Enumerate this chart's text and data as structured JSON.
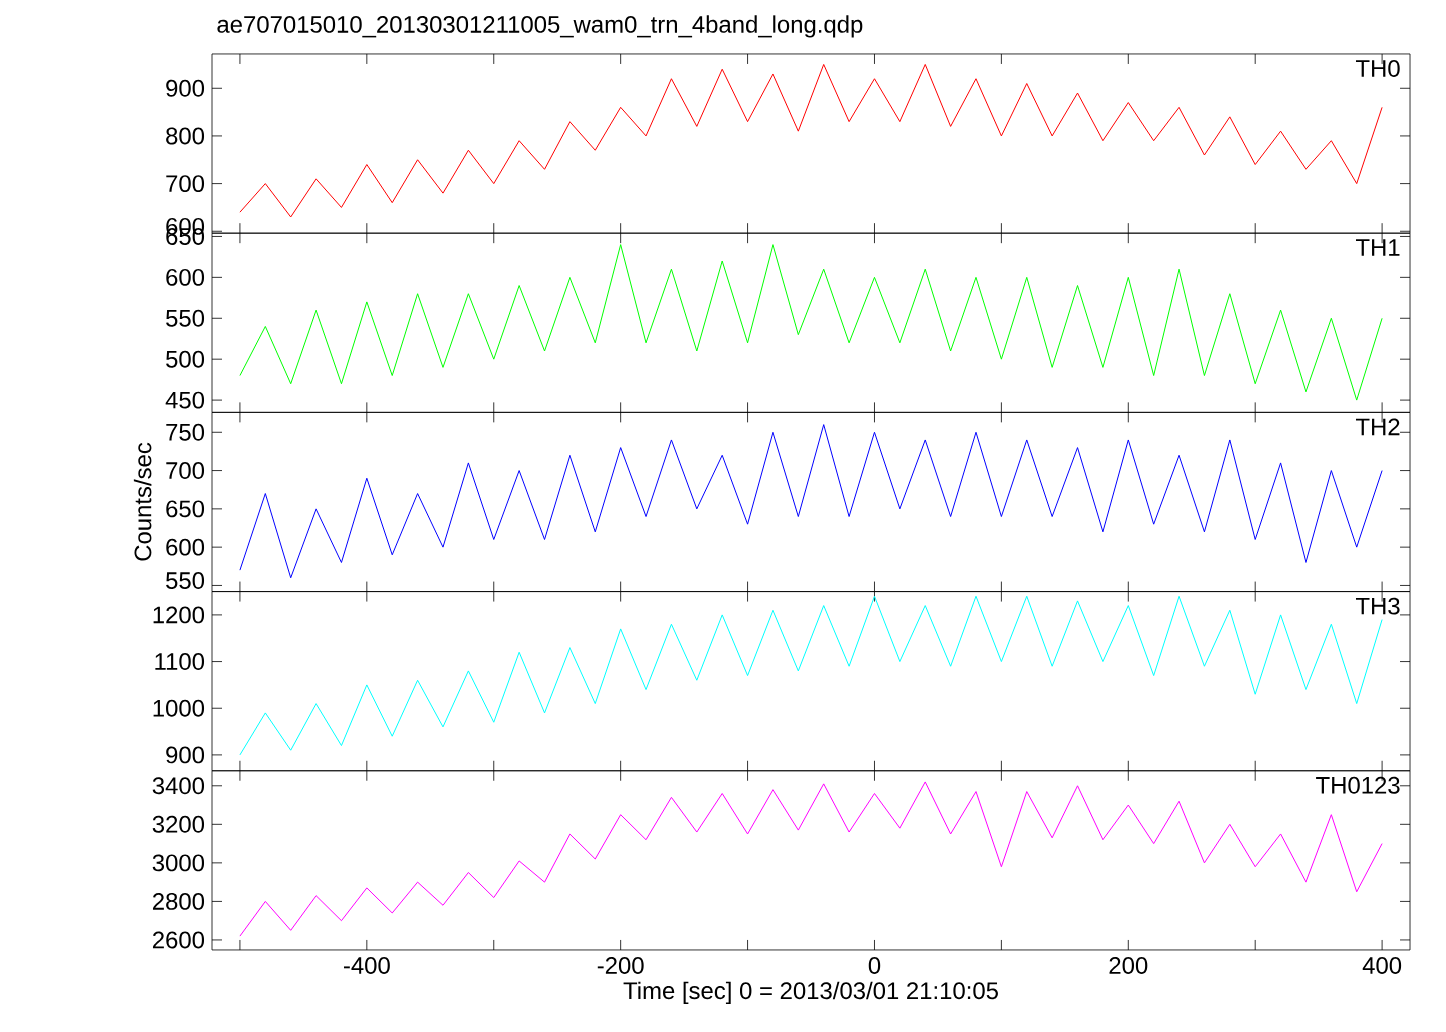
{
  "chart_data": [
    {
      "type": "line",
      "title": "ae707015010_20130301211005_wam0_trn_4band_long.qdp",
      "xlim": [
        -522,
        422
      ],
      "ylim": [
        596,
        972
      ],
      "tick_labels": "y",
      "xticks": [
        {
          "value": -500,
          "label": null
        },
        -400,
        {
          "value": -300,
          "label": null
        },
        -200,
        {
          "value": -100,
          "label": null
        },
        0,
        {
          "value": 100,
          "label": null
        },
        200,
        {
          "value": 300,
          "label": null
        },
        400
      ],
      "yticks": [
        600,
        700,
        800,
        900
      ],
      "x": [
        -500,
        -480,
        -460,
        -440,
        -420,
        -400,
        -380,
        -360,
        -340,
        -320,
        -300,
        -280,
        -260,
        -240,
        -220,
        -200,
        -180,
        -160,
        -140,
        -120,
        -100,
        -80,
        -60,
        -40,
        -20,
        0,
        20,
        40,
        60,
        80,
        100,
        120,
        140,
        160,
        180,
        200,
        220,
        240,
        260,
        280,
        300,
        320,
        340,
        360,
        380,
        400
      ],
      "series": [
        {
          "name": "TH0",
          "color": "#ff0000",
          "values": [
            640,
            700,
            630,
            710,
            650,
            740,
            660,
            750,
            680,
            770,
            700,
            790,
            730,
            830,
            770,
            860,
            800,
            920,
            820,
            940,
            830,
            930,
            810,
            950,
            830,
            920,
            830,
            950,
            820,
            920,
            800,
            910,
            800,
            890,
            790,
            870,
            790,
            860,
            760,
            840,
            740,
            810,
            730,
            790,
            700,
            860
          ]
        }
      ]
    },
    {
      "type": "line",
      "xlim": [
        -522,
        422
      ],
      "ylim": [
        435,
        654
      ],
      "tick_labels": "y",
      "xticks": [
        {
          "value": -500,
          "label": null
        },
        -400,
        {
          "value": -300,
          "label": null
        },
        -200,
        {
          "value": -100,
          "label": null
        },
        0,
        {
          "value": 100,
          "label": null
        },
        200,
        {
          "value": 300,
          "label": null
        },
        400
      ],
      "yticks": [
        450,
        500,
        550,
        600,
        650
      ],
      "x": [
        -500,
        -480,
        -460,
        -440,
        -420,
        -400,
        -380,
        -360,
        -340,
        -320,
        -300,
        -280,
        -260,
        -240,
        -220,
        -200,
        -180,
        -160,
        -140,
        -120,
        -100,
        -80,
        -60,
        -40,
        -20,
        0,
        20,
        40,
        60,
        80,
        100,
        120,
        140,
        160,
        180,
        200,
        220,
        240,
        260,
        280,
        300,
        320,
        340,
        360,
        380,
        400
      ],
      "series": [
        {
          "name": "TH1",
          "color": "#00ff00",
          "values": [
            480,
            540,
            470,
            560,
            470,
            570,
            480,
            580,
            490,
            580,
            500,
            590,
            510,
            600,
            520,
            640,
            520,
            610,
            510,
            620,
            520,
            640,
            530,
            610,
            520,
            600,
            520,
            610,
            510,
            600,
            500,
            600,
            490,
            590,
            490,
            600,
            480,
            610,
            480,
            580,
            470,
            560,
            460,
            550,
            450,
            550
          ]
        }
      ]
    },
    {
      "type": "line",
      "ylabel": "Counts/sec",
      "xlim": [
        -522,
        422
      ],
      "ylim": [
        542,
        776
      ],
      "tick_labels": "y",
      "xticks": [
        {
          "value": -500,
          "label": null
        },
        -400,
        {
          "value": -300,
          "label": null
        },
        -200,
        {
          "value": -100,
          "label": null
        },
        0,
        {
          "value": 100,
          "label": null
        },
        200,
        {
          "value": 300,
          "label": null
        },
        400
      ],
      "yticks": [
        550,
        600,
        650,
        700,
        750
      ],
      "x": [
        -500,
        -480,
        -460,
        -440,
        -420,
        -400,
        -380,
        -360,
        -340,
        -320,
        -300,
        -280,
        -260,
        -240,
        -220,
        -200,
        -180,
        -160,
        -140,
        -120,
        -100,
        -80,
        -60,
        -40,
        -20,
        0,
        20,
        40,
        60,
        80,
        100,
        120,
        140,
        160,
        180,
        200,
        220,
        240,
        260,
        280,
        300,
        320,
        340,
        360,
        380,
        400
      ],
      "series": [
        {
          "name": "TH2",
          "color": "#0000ff",
          "values": [
            570,
            670,
            560,
            650,
            580,
            690,
            590,
            670,
            600,
            710,
            610,
            700,
            610,
            720,
            620,
            730,
            640,
            740,
            650,
            720,
            630,
            750,
            640,
            760,
            640,
            750,
            650,
            740,
            640,
            750,
            640,
            740,
            640,
            730,
            620,
            740,
            630,
            720,
            620,
            740,
            610,
            710,
            580,
            700,
            600,
            700
          ]
        }
      ]
    },
    {
      "type": "line",
      "xlim": [
        -522,
        422
      ],
      "ylim": [
        866,
        1250
      ],
      "tick_labels": "y",
      "xticks": [
        {
          "value": -500,
          "label": null
        },
        -400,
        {
          "value": -300,
          "label": null
        },
        -200,
        {
          "value": -100,
          "label": null
        },
        0,
        {
          "value": 100,
          "label": null
        },
        200,
        {
          "value": 300,
          "label": null
        },
        400
      ],
      "yticks": [
        900,
        1000,
        1100,
        1200
      ],
      "x": [
        -500,
        -480,
        -460,
        -440,
        -420,
        -400,
        -380,
        -360,
        -340,
        -320,
        -300,
        -280,
        -260,
        -240,
        -220,
        -200,
        -180,
        -160,
        -140,
        -120,
        -100,
        -80,
        -60,
        -40,
        -20,
        0,
        20,
        40,
        60,
        80,
        100,
        120,
        140,
        160,
        180,
        200,
        220,
        240,
        260,
        280,
        300,
        320,
        340,
        360,
        380,
        400
      ],
      "series": [
        {
          "name": "TH3",
          "color": "#00ffff",
          "values": [
            900,
            990,
            910,
            1010,
            920,
            1050,
            940,
            1060,
            960,
            1080,
            970,
            1120,
            990,
            1130,
            1010,
            1170,
            1040,
            1180,
            1060,
            1200,
            1070,
            1210,
            1080,
            1220,
            1090,
            1240,
            1100,
            1220,
            1090,
            1240,
            1100,
            1240,
            1090,
            1230,
            1100,
            1220,
            1070,
            1240,
            1090,
            1210,
            1030,
            1200,
            1040,
            1180,
            1010,
            1190
          ]
        }
      ]
    },
    {
      "type": "line",
      "xlabel": "Time [sec] 0 = 2013/03/01 21:10:05",
      "xlim": [
        -522,
        422
      ],
      "ylim": [
        2548,
        3478
      ],
      "xticks": [
        {
          "value": -500,
          "label": null
        },
        -400,
        {
          "value": -300,
          "label": null
        },
        -200,
        {
          "value": -100,
          "label": null
        },
        0,
        {
          "value": 100,
          "label": null
        },
        200,
        {
          "value": 300,
          "label": null
        },
        400
      ],
      "yticks": [
        2600,
        2800,
        3000,
        3200,
        3400
      ],
      "x": [
        -500,
        -480,
        -460,
        -440,
        -420,
        -400,
        -380,
        -360,
        -340,
        -320,
        -300,
        -280,
        -260,
        -240,
        -220,
        -200,
        -180,
        -160,
        -140,
        -120,
        -100,
        -80,
        -60,
        -40,
        -20,
        0,
        20,
        40,
        60,
        80,
        100,
        120,
        140,
        160,
        180,
        200,
        220,
        240,
        260,
        280,
        300,
        320,
        340,
        360,
        380,
        400
      ],
      "series": [
        {
          "name": "TH0123",
          "color": "#ff00ff",
          "values": [
            2620,
            2800,
            2650,
            2830,
            2700,
            2870,
            2740,
            2900,
            2780,
            2950,
            2820,
            3010,
            2900,
            3150,
            3020,
            3250,
            3120,
            3340,
            3160,
            3360,
            3150,
            3380,
            3170,
            3410,
            3160,
            3360,
            3180,
            3420,
            3150,
            3370,
            2980,
            3370,
            3130,
            3400,
            3120,
            3300,
            3100,
            3320,
            3000,
            3200,
            2980,
            3150,
            2900,
            3250,
            2850,
            3100
          ]
        }
      ]
    }
  ]
}
